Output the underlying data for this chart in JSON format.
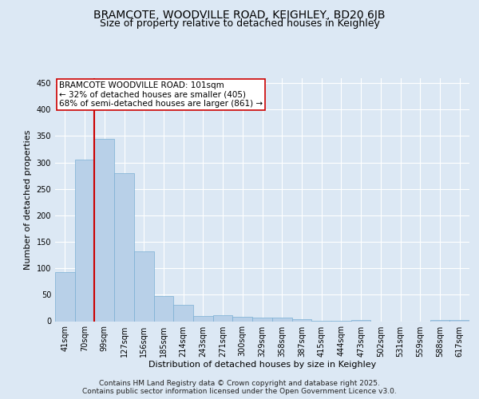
{
  "title_line1": "BRAMCOTE, WOODVILLE ROAD, KEIGHLEY, BD20 6JB",
  "title_line2": "Size of property relative to detached houses in Keighley",
  "xlabel": "Distribution of detached houses by size in Keighley",
  "ylabel": "Number of detached properties",
  "categories": [
    "41sqm",
    "70sqm",
    "99sqm",
    "127sqm",
    "156sqm",
    "185sqm",
    "214sqm",
    "243sqm",
    "271sqm",
    "300sqm",
    "329sqm",
    "358sqm",
    "387sqm",
    "415sqm",
    "444sqm",
    "473sqm",
    "502sqm",
    "531sqm",
    "559sqm",
    "588sqm",
    "617sqm"
  ],
  "values": [
    93,
    305,
    345,
    280,
    132,
    47,
    31,
    10,
    11,
    9,
    7,
    7,
    4,
    1,
    1,
    2,
    0,
    0,
    0,
    2,
    2
  ],
  "bar_color": "#b8d0e8",
  "bar_edge_color": "#7aafd4",
  "vline_index": 2,
  "vline_color": "#cc0000",
  "ylim": [
    0,
    460
  ],
  "yticks": [
    0,
    50,
    100,
    150,
    200,
    250,
    300,
    350,
    400,
    450
  ],
  "annotation_text": "BRAMCOTE WOODVILLE ROAD: 101sqm\n← 32% of detached houses are smaller (405)\n68% of semi-detached houses are larger (861) →",
  "annotation_box_facecolor": "#ffffff",
  "annotation_box_edgecolor": "#cc0000",
  "background_color": "#dce8f4",
  "plot_bg_color": "#dce8f4",
  "footer_text": "Contains HM Land Registry data © Crown copyright and database right 2025.\nContains public sector information licensed under the Open Government Licence v3.0.",
  "grid_color": "#ffffff",
  "title_fontsize": 10,
  "subtitle_fontsize": 9,
  "tick_fontsize": 7,
  "ylabel_fontsize": 8,
  "xlabel_fontsize": 8,
  "footer_fontsize": 6.5,
  "annotation_fontsize": 7.5
}
